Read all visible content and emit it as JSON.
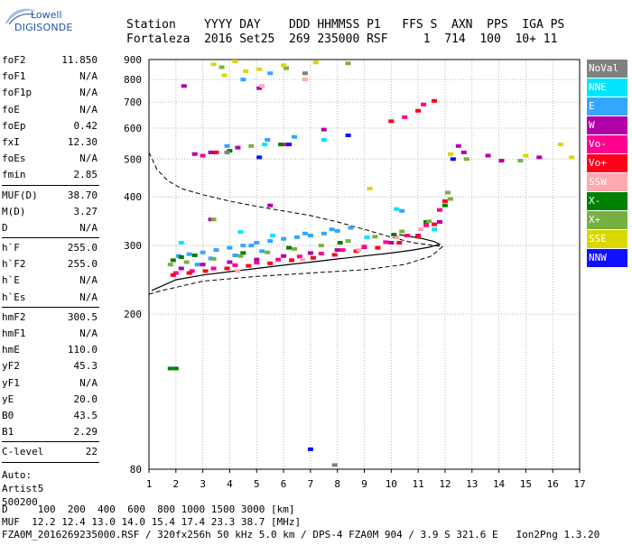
{
  "logo": {
    "brand": "Lowell",
    "name": "DIGISONDE"
  },
  "header": {
    "line1": "Station    YYYY DAY    DDD HHMMSS P1   FFS S  AXN  PPS  IGA PS",
    "line2": "Fortaleza  2016 Set25  269 235000 RSF     1  714  100  10+ 11"
  },
  "params_groups": [
    [
      {
        "k": "foF2",
        "v": "11.850"
      },
      {
        "k": "foF1",
        "v": "N/A"
      },
      {
        "k": "foF1p",
        "v": "N/A"
      },
      {
        "k": "foE",
        "v": "N/A"
      },
      {
        "k": "foEp",
        "v": "0.42"
      },
      {
        "k": "fxI",
        "v": "12.30"
      },
      {
        "k": "foEs",
        "v": "N/A"
      },
      {
        "k": "fmin",
        "v": "2.85"
      }
    ],
    [
      {
        "k": "MUF(D)",
        "v": "38.70"
      },
      {
        "k": "M(D)",
        "v": "3.27"
      },
      {
        "k": "D",
        "v": "N/A"
      }
    ],
    [
      {
        "k": "h`F",
        "v": "255.0"
      },
      {
        "k": "h`F2",
        "v": "255.0"
      },
      {
        "k": "h`E",
        "v": "N/A"
      },
      {
        "k": "h`Es",
        "v": "N/A"
      }
    ],
    [
      {
        "k": "hmF2",
        "v": "300.5"
      },
      {
        "k": "hmF1",
        "v": "N/A"
      },
      {
        "k": "hmE",
        "v": "110.0"
      },
      {
        "k": "yF2",
        "v": "45.3"
      },
      {
        "k": "yF1",
        "v": "N/A"
      },
      {
        "k": "yE",
        "v": "20.0"
      },
      {
        "k": "B0",
        "v": "43.5"
      },
      {
        "k": "B1",
        "v": "2.29"
      }
    ],
    [
      {
        "k": "C-level",
        "v": "22"
      }
    ]
  ],
  "auto_lines": [
    "Auto:",
    "Artist5",
    "500200"
  ],
  "legend": [
    {
      "label": "NoVal",
      "color": "#808080"
    },
    {
      "label": "NNE",
      "color": "#00e5ff"
    },
    {
      "label": "E",
      "color": "#33a6ff"
    },
    {
      "label": "W",
      "color": "#b000a8"
    },
    {
      "label": "Vo-",
      "color": "#ff0090"
    },
    {
      "label": "Vo+",
      "color": "#ff0018"
    },
    {
      "label": "SSW",
      "color": "#ffa8b0"
    },
    {
      "label": "X-",
      "color": "#008000"
    },
    {
      "label": "X+",
      "color": "#78b040"
    },
    {
      "label": "SSE",
      "color": "#d8d800"
    },
    {
      "label": "NNW",
      "color": "#1010ff"
    }
  ],
  "bottom": {
    "line1": "D     100  200  400  600  800 1000 1500 3000 [km]",
    "line2": "MUF  12.2 12.4 13.0 14.0 15.4 17.4 23.3 38.7 [MHz]",
    "line3": "FZA0M_2016269235000.RSF / 320fx256h 50 kHz 5.0 km / DPS-4 FZA0M 904 / 3.9 S 321.6 E   Ion2Png 1.3.20"
  },
  "chart_data": {
    "type": "scatter",
    "title": "",
    "xlabel": "",
    "ylabel": "",
    "xlim": [
      1,
      17
    ],
    "ylim": [
      80,
      900
    ],
    "x_ticks": [
      1,
      2,
      3,
      4,
      5,
      6,
      7,
      8,
      9,
      10,
      11,
      12,
      13,
      14,
      15,
      16,
      17
    ],
    "y_ticks": [
      80,
      200,
      300,
      400,
      500,
      600,
      700,
      800,
      900
    ],
    "y_scale": "log",
    "grid": true,
    "legend_placement": "right",
    "series": [
      {
        "name": "NNE",
        "color": "#00e5ff",
        "points": [
          [
            2.2,
            305
          ],
          [
            4.4,
            325
          ],
          [
            5.6,
            318
          ],
          [
            9.1,
            315
          ],
          [
            10.2,
            372
          ],
          [
            11.6,
            330
          ],
          [
            5.3,
            545
          ],
          [
            7.5,
            560
          ]
        ]
      },
      {
        "name": "E",
        "color": "#33a6ff",
        "points": [
          [
            2.1,
            282
          ],
          [
            2.5,
            285
          ],
          [
            3.0,
            288
          ],
          [
            3.5,
            292
          ],
          [
            4.0,
            296
          ],
          [
            4.5,
            300
          ],
          [
            5.0,
            305
          ],
          [
            5.5,
            308
          ],
          [
            6.0,
            312
          ],
          [
            6.5,
            315
          ],
          [
            7.0,
            318
          ],
          [
            7.5,
            322
          ],
          [
            8.0,
            327
          ],
          [
            8.5,
            333
          ],
          [
            3.3,
            278
          ],
          [
            4.2,
            283
          ],
          [
            5.2,
            290
          ],
          [
            2.8,
            268
          ],
          [
            4.8,
            300
          ],
          [
            6.8,
            322
          ],
          [
            7.8,
            330
          ],
          [
            3.9,
            540
          ],
          [
            5.4,
            560
          ],
          [
            6.4,
            570
          ],
          [
            4.5,
            800
          ],
          [
            5.5,
            830
          ],
          [
            10.4,
            368
          ]
        ]
      },
      {
        "name": "W",
        "color": "#b000a8",
        "points": [
          [
            2.2,
            262
          ],
          [
            3.0,
            268
          ],
          [
            4.0,
            272
          ],
          [
            5.0,
            276
          ],
          [
            6.0,
            282
          ],
          [
            7.0,
            287
          ],
          [
            8.0,
            292
          ],
          [
            9.0,
            297
          ],
          [
            10.0,
            305
          ],
          [
            11.0,
            318
          ],
          [
            11.8,
            345
          ],
          [
            3.3,
            350
          ],
          [
            5.5,
            380
          ],
          [
            2.7,
            515
          ],
          [
            3.3,
            520
          ],
          [
            4.3,
            535
          ],
          [
            12.5,
            540
          ],
          [
            12.7,
            520
          ],
          [
            13.6,
            510
          ],
          [
            14.1,
            495
          ],
          [
            15.5,
            505
          ],
          [
            5.1,
            760
          ],
          [
            2.3,
            770
          ],
          [
            7.5,
            595
          ]
        ]
      },
      {
        "name": "Vo-",
        "color": "#ff0090",
        "points": [
          [
            2.0,
            255
          ],
          [
            2.6,
            258
          ],
          [
            3.4,
            262
          ],
          [
            4.2,
            267
          ],
          [
            5.0,
            271
          ],
          [
            5.8,
            276
          ],
          [
            6.6,
            281
          ],
          [
            7.4,
            286
          ],
          [
            8.2,
            292
          ],
          [
            9.0,
            298
          ],
          [
            9.8,
            306
          ],
          [
            10.6,
            318
          ],
          [
            11.3,
            338
          ],
          [
            11.8,
            370
          ],
          [
            10.5,
            640
          ],
          [
            11.2,
            690
          ],
          [
            3.0,
            510
          ],
          [
            6.0,
            545
          ]
        ]
      },
      {
        "name": "Vo+",
        "color": "#ff0018",
        "points": [
          [
            1.9,
            252
          ],
          [
            2.5,
            255
          ],
          [
            3.1,
            258
          ],
          [
            3.9,
            262
          ],
          [
            4.7,
            266
          ],
          [
            5.5,
            270
          ],
          [
            6.3,
            275
          ],
          [
            7.1,
            279
          ],
          [
            7.9,
            284
          ],
          [
            8.7,
            290
          ],
          [
            9.5,
            296
          ],
          [
            10.3,
            305
          ],
          [
            11.0,
            316
          ],
          [
            11.6,
            340
          ],
          [
            12.0,
            390
          ],
          [
            10.0,
            625
          ],
          [
            11.0,
            665
          ],
          [
            11.6,
            705
          ],
          [
            3.5,
            520
          ]
        ]
      },
      {
        "name": "SSW",
        "color": "#ffa8b0",
        "points": [
          [
            4.3,
            258
          ],
          [
            6.7,
            276
          ],
          [
            8.8,
            292
          ],
          [
            10.2,
            315
          ],
          [
            11.1,
            330
          ],
          [
            5.2,
            770
          ],
          [
            6.8,
            800
          ]
        ]
      },
      {
        "name": "X-",
        "color": "#008000",
        "points": [
          [
            1.9,
            275
          ],
          [
            2.2,
            280
          ],
          [
            2.7,
            283
          ],
          [
            4.5,
            287
          ],
          [
            6.2,
            296
          ],
          [
            8.1,
            305
          ],
          [
            10.1,
            320
          ],
          [
            11.3,
            345
          ],
          [
            12.0,
            380
          ],
          [
            1.8,
            145
          ],
          [
            2.0,
            145
          ],
          [
            4.0,
            525
          ],
          [
            5.9,
            545
          ]
        ]
      },
      {
        "name": "X+",
        "color": "#78b040",
        "points": [
          [
            1.8,
            268
          ],
          [
            2.4,
            272
          ],
          [
            3.4,
            277
          ],
          [
            4.4,
            282
          ],
          [
            5.4,
            288
          ],
          [
            6.4,
            294
          ],
          [
            7.4,
            300
          ],
          [
            8.4,
            308
          ],
          [
            9.4,
            316
          ],
          [
            10.4,
            326
          ],
          [
            11.4,
            346
          ],
          [
            12.1,
            410
          ],
          [
            12.2,
            395
          ],
          [
            3.4,
            350
          ],
          [
            4.8,
            540
          ],
          [
            3.7,
            860
          ],
          [
            6.1,
            855
          ],
          [
            8.4,
            880
          ],
          [
            12.8,
            500
          ],
          [
            14.8,
            495
          ]
        ]
      },
      {
        "name": "SSE",
        "color": "#d8d800",
        "points": [
          [
            3.4,
            875
          ],
          [
            4.2,
            890
          ],
          [
            5.1,
            850
          ],
          [
            6.0,
            870
          ],
          [
            7.2,
            885
          ],
          [
            3.8,
            820
          ],
          [
            12.2,
            515
          ],
          [
            15.0,
            510
          ],
          [
            16.3,
            545
          ],
          [
            16.7,
            505
          ],
          [
            9.2,
            420
          ],
          [
            4.6,
            840
          ]
        ]
      },
      {
        "name": "NNW",
        "color": "#1010ff",
        "points": [
          [
            5.1,
            505
          ],
          [
            6.2,
            545
          ],
          [
            8.4,
            575
          ],
          [
            12.3,
            500
          ],
          [
            7.0,
            90
          ]
        ]
      },
      {
        "name": "NoVal",
        "color": "#808080",
        "points": [
          [
            7.9,
            82
          ],
          [
            6.8,
            830
          ],
          [
            3.9,
            520
          ]
        ]
      }
    ],
    "profile_solid": [
      [
        1.1,
        230
      ],
      [
        2,
        245
      ],
      [
        3,
        252
      ],
      [
        4,
        257
      ],
      [
        5,
        262
      ],
      [
        6,
        267
      ],
      [
        7,
        272
      ],
      [
        8,
        277
      ],
      [
        9,
        282
      ],
      [
        10,
        287
      ],
      [
        10.8,
        292
      ],
      [
        11.4,
        297
      ],
      [
        11.8,
        302
      ],
      [
        11.6,
        307
      ],
      [
        11.1,
        313
      ],
      [
        10.3,
        320
      ]
    ],
    "profile_dashed": [
      [
        1.0,
        520
      ],
      [
        1.3,
        470
      ],
      [
        1.7,
        440
      ],
      [
        2.2,
        420
      ],
      [
        3,
        405
      ],
      [
        4,
        390
      ],
      [
        5,
        378
      ],
      [
        6,
        368
      ],
      [
        7,
        358
      ],
      [
        8,
        345
      ],
      [
        9,
        330
      ],
      [
        10,
        315
      ],
      [
        10.8,
        305
      ],
      [
        11.6,
        300
      ],
      [
        11.9,
        298
      ],
      [
        11.5,
        282
      ],
      [
        10.5,
        268
      ],
      [
        9,
        260
      ],
      [
        7,
        255
      ],
      [
        5,
        250
      ],
      [
        3,
        243
      ],
      [
        1.5,
        230
      ],
      [
        1.0,
        225
      ]
    ]
  }
}
